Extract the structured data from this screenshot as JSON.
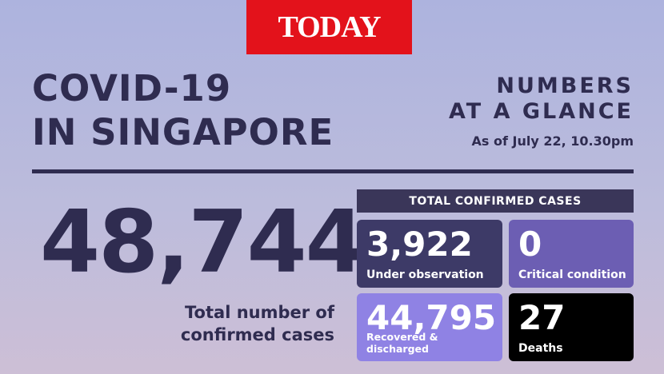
{
  "logo": "TODAY",
  "title": [
    "COVID-19",
    "IN SINGAPORE"
  ],
  "heading": [
    "NUMBERS",
    "AT A GLANCE"
  ],
  "date": "As of July 22, 10.30pm",
  "total": {
    "value": "48,744",
    "label": [
      "Total number of",
      "confirmed cases"
    ]
  },
  "panel": {
    "header": "TOTAL CONFIRMED CASES",
    "boxes": [
      {
        "value": "3,922",
        "label": "Under observation"
      },
      {
        "value": "0",
        "label": "Critical condition"
      },
      {
        "value": "44,795",
        "label": "Recovered & discharged"
      },
      {
        "value": "27",
        "label": "Deaths"
      }
    ]
  }
}
